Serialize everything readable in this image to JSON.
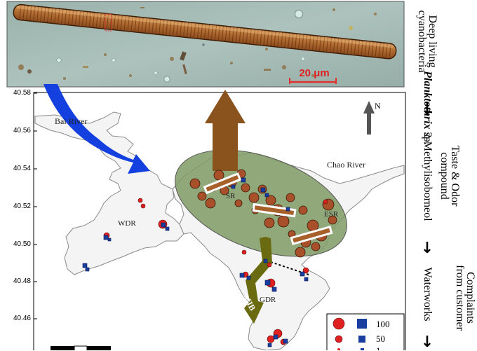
{
  "micrograph": {
    "scale_bar_label": "20 μm"
  },
  "map": {
    "y_axis_ticks": [
      "40.58",
      "40.56",
      "40.54",
      "40.52",
      "40.50",
      "40.48",
      "40.46"
    ],
    "north_label": "N",
    "places": {
      "river_west": "Bai River",
      "river_east": "Chao River",
      "wdr": "WDR",
      "dsr": "SR",
      "esr": "ESR",
      "gdr": "GDR",
      "mib_label": "MIB"
    },
    "legend": {
      "items": [
        {
          "label": "100"
        },
        {
          "label": "50"
        },
        {
          "label": "1"
        }
      ]
    },
    "colors": {
      "water": "#f4f4f4",
      "shore": "#8a8a8a",
      "ellipse": "#7f9a64",
      "circle_marker": "#e02020",
      "square_marker": "#1a3ea0",
      "bloom_circle": "#a8502a",
      "blue_arrow": "#1440e0",
      "brown_arrow": "#8a531e",
      "olive_arrow": "#6a6a10"
    }
  },
  "chain": {
    "col1": [
      "Deep living",
      "cyanobacteria"
    ],
    "col1_species_italic": "Planktothrix",
    "col1_species_rest": " sp.",
    "col1_next": "2-Methylisoborneol",
    "col2": [
      "Taste & Odor",
      "compound"
    ],
    "col2_next": "Waterworks",
    "col3": [
      "Complaints",
      "from customer"
    ],
    "arrow_glyph": "→"
  }
}
